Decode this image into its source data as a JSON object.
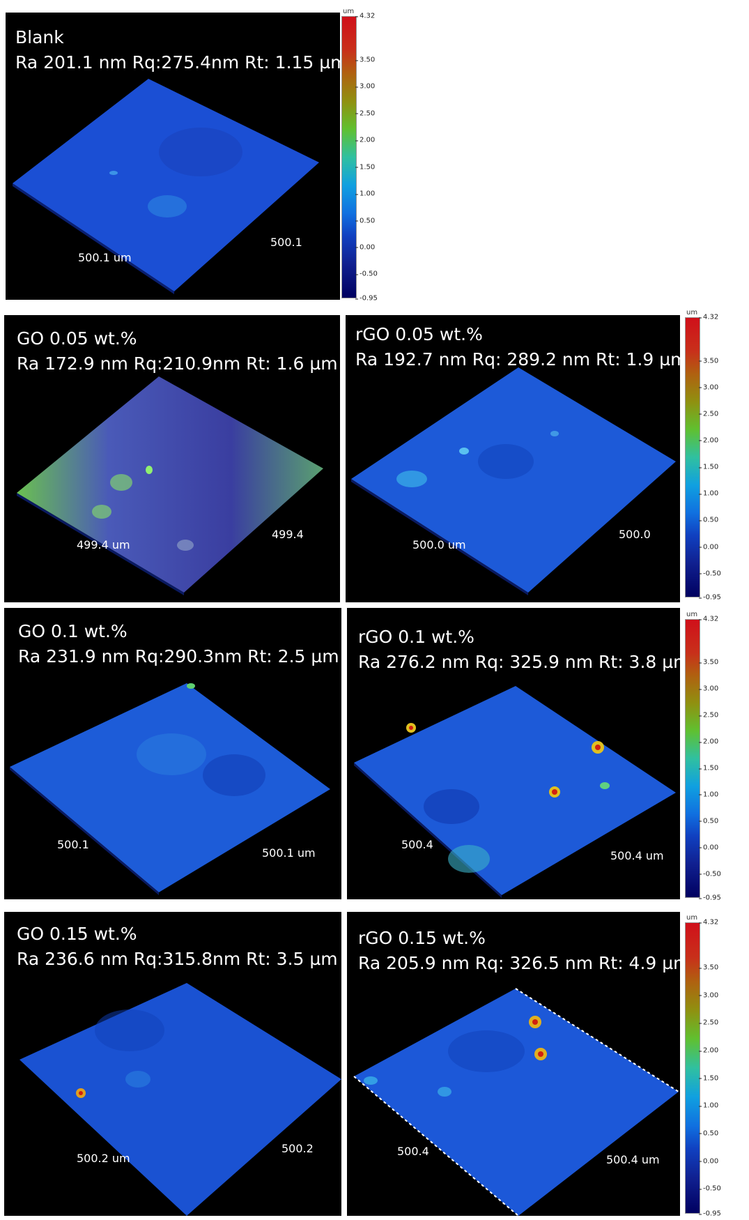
{
  "panels": [
    {
      "id": "blank",
      "line1": "Blank",
      "line2": "Ra 201.1 nm Rq:275.4nm Rt: 1.15 µm",
      "axis_x": "500.1 um",
      "axis_y": "500.1"
    },
    {
      "id": "go005",
      "line1": "GO 0.05 wt.%",
      "line2": "Ra 172.9 nm Rq:210.9nm Rt: 1.6 µm",
      "axis_x": "499.4 um",
      "axis_y": "499.4"
    },
    {
      "id": "rgo005",
      "line1": "rGO 0.05 wt.%",
      "line2": "Ra 192.7 nm Rq: 289.2 nm Rt: 1.9 µm",
      "axis_x": "500.0 um",
      "axis_y": "500.0"
    },
    {
      "id": "go01",
      "line1": "GO 0.1 wt.%",
      "line2": "Ra 231.9 nm Rq:290.3nm Rt: 2.5 µm",
      "axis_x": "500.1",
      "axis_y": "500.1 um"
    },
    {
      "id": "rgo01",
      "line1": "rGO 0.1 wt.%",
      "line2": "Ra 276.2 nm Rq: 325.9 nm Rt: 3.8 µm",
      "axis_x": "500.4",
      "axis_y": "500.4 um"
    },
    {
      "id": "go015",
      "line1": "GO 0.15 wt.%",
      "line2": "Ra 236.6 nm Rq:315.8nm Rt: 3.5 µm",
      "axis_x": "500.2 um",
      "axis_y": "500.2"
    },
    {
      "id": "rgo015",
      "line1": "rGO 0.15 wt.%",
      "line2": "Ra 205.9 nm Rq: 326.5 nm Rt: 4.9 µm",
      "axis_x": "500.4",
      "axis_y": "500.4 um"
    }
  ],
  "colorbar": {
    "unit": "um",
    "ticks": [
      "4.32",
      "3.50",
      "3.00",
      "2.50",
      "2.00",
      "1.50",
      "1.00",
      "0.50",
      "0.00",
      "-0.50",
      "-0.95"
    ],
    "tick_values": [
      4.32,
      3.5,
      3.0,
      2.5,
      2.0,
      1.5,
      1.0,
      0.5,
      0.0,
      -0.5,
      -0.95
    ],
    "min": -0.95,
    "max": 4.32
  },
  "colors": {
    "surface": "#1a4fd0",
    "surface_dark": "#0c2a9a",
    "hot_spot": "#d02010",
    "panel_bg": "#000000"
  }
}
